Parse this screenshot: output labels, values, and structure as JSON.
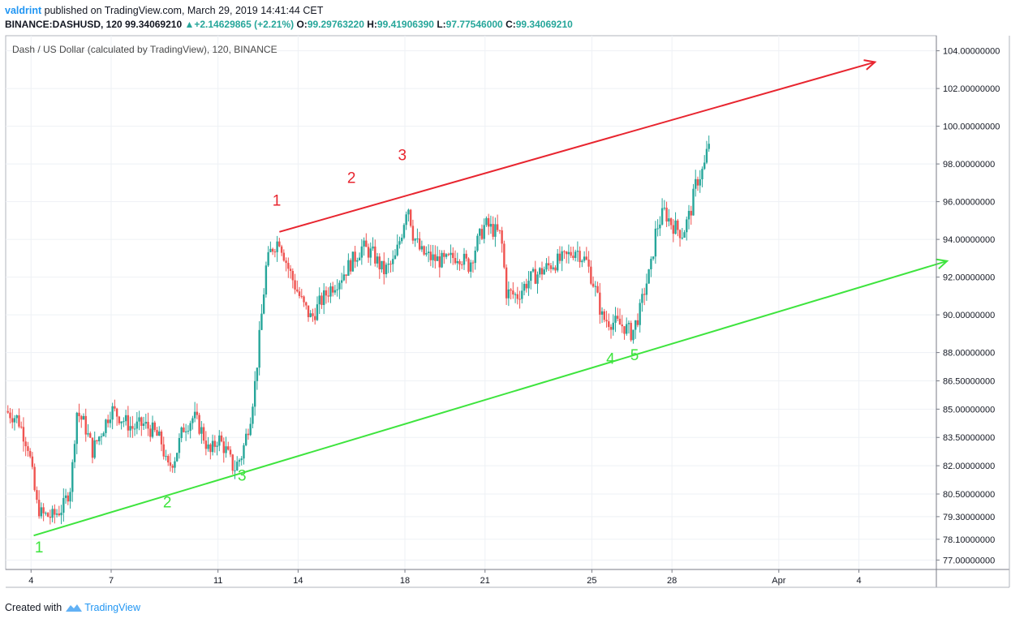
{
  "header": {
    "author": "valdrint",
    "published": " published on TradingView.com, March 29, 2019 14:41:44 CET",
    "symbol": "BINANCE:DASHUSD, 120",
    "last_price": "99.34069210",
    "change_arrow": "▲",
    "change": "+2.14629865 (+2.21%)",
    "open_label": "O:",
    "open": "99.29763220",
    "high_label": "H:",
    "high": "99.41906390",
    "low_label": "L:",
    "low": "97.77546000",
    "close_label": "C:",
    "close": "99.34069210"
  },
  "footer": {
    "created_with": "Created with",
    "brand": "TradingView"
  },
  "chart_data": {
    "type": "candlestick",
    "title": "Dash / US Dollar (calculated by TradingView), 120, BINANCE",
    "ylim": [
      76.5,
      104.8
    ],
    "y_ticks": [
      {
        "value": 104,
        "label": "104.00000000"
      },
      {
        "value": 102,
        "label": "102.00000000"
      },
      {
        "value": 100,
        "label": "100.00000000"
      },
      {
        "value": 98,
        "label": "98.00000000"
      },
      {
        "value": 96,
        "label": "96.00000000"
      },
      {
        "value": 94,
        "label": "94.00000000"
      },
      {
        "value": 92,
        "label": "92.00000000"
      },
      {
        "value": 90,
        "label": "90.00000000"
      },
      {
        "value": 88,
        "label": "88.00000000"
      },
      {
        "value": 86.5,
        "label": "86.50000000"
      },
      {
        "value": 85,
        "label": "85.00000000"
      },
      {
        "value": 83.5,
        "label": "83.50000000"
      },
      {
        "value": 82,
        "label": "82.00000000"
      },
      {
        "value": 80.5,
        "label": "80.50000000"
      },
      {
        "value": 79.3,
        "label": "79.30000000"
      },
      {
        "value": 78.1,
        "label": "78.10000000"
      },
      {
        "value": 77,
        "label": "77.00000000"
      }
    ],
    "x_ticks": [
      {
        "day": 4,
        "label": "4"
      },
      {
        "day": 7,
        "label": "7"
      },
      {
        "day": 11,
        "label": "11"
      },
      {
        "day": 14,
        "label": "14"
      },
      {
        "day": 18,
        "label": "18"
      },
      {
        "day": 21,
        "label": "21"
      },
      {
        "day": 25,
        "label": "25"
      },
      {
        "day": 28,
        "label": "28"
      },
      {
        "day": 32,
        "label": "Apr"
      },
      {
        "day": 35,
        "label": "4"
      }
    ],
    "x_range_days": [
      3.05,
      37.9
    ],
    "price_path": [
      [
        3.05,
        84.9
      ],
      [
        3.5,
        84.5
      ],
      [
        3.9,
        83.0
      ],
      [
        4.2,
        80.0
      ],
      [
        4.4,
        79.4
      ],
      [
        4.8,
        79.3
      ],
      [
        5.2,
        79.8
      ],
      [
        5.5,
        81.0
      ],
      [
        5.7,
        84.9
      ],
      [
        6.0,
        84.2
      ],
      [
        6.3,
        82.8
      ],
      [
        6.7,
        84.0
      ],
      [
        7.0,
        85.0
      ],
      [
        7.4,
        84.5
      ],
      [
        7.8,
        84.0
      ],
      [
        8.2,
        84.2
      ],
      [
        8.6,
        83.8
      ],
      [
        8.9,
        83.2
      ],
      [
        9.1,
        81.8
      ],
      [
        9.4,
        82.5
      ],
      [
        9.7,
        84.0
      ],
      [
        10.1,
        84.6
      ],
      [
        10.4,
        83.8
      ],
      [
        10.7,
        82.6
      ],
      [
        11.0,
        83.5
      ],
      [
        11.3,
        82.8
      ],
      [
        11.6,
        81.8
      ],
      [
        11.9,
        82.6
      ],
      [
        12.2,
        84.5
      ],
      [
        12.4,
        86.5
      ],
      [
        12.6,
        89.5
      ],
      [
        12.8,
        92.5
      ],
      [
        13.0,
        93.5
      ],
      [
        13.3,
        94.0
      ],
      [
        13.6,
        92.6
      ],
      [
        13.9,
        91.5
      ],
      [
        14.2,
        90.5
      ],
      [
        14.5,
        89.8
      ],
      [
        14.8,
        90.6
      ],
      [
        15.2,
        91.4
      ],
      [
        15.6,
        92.0
      ],
      [
        16.0,
        92.8
      ],
      [
        16.4,
        93.6
      ],
      [
        16.8,
        93.2
      ],
      [
        17.2,
        92.3
      ],
      [
        17.6,
        92.8
      ],
      [
        17.9,
        94.5
      ],
      [
        18.1,
        96.0
      ],
      [
        18.3,
        94.3
      ],
      [
        18.6,
        93.3
      ],
      [
        19.0,
        93.0
      ],
      [
        19.5,
        92.8
      ],
      [
        20.0,
        93.2
      ],
      [
        20.4,
        92.6
      ],
      [
        20.7,
        93.8
      ],
      [
        21.0,
        94.8
      ],
      [
        21.4,
        94.4
      ],
      [
        21.6,
        94.2
      ],
      [
        21.8,
        91.2
      ],
      [
        22.2,
        91.0
      ],
      [
        22.6,
        91.8
      ],
      [
        23.0,
        92.2
      ],
      [
        23.5,
        92.7
      ],
      [
        24.0,
        93.0
      ],
      [
        24.4,
        93.5
      ],
      [
        24.8,
        92.8
      ],
      [
        25.1,
        91.5
      ],
      [
        25.4,
        89.8
      ],
      [
        25.8,
        89.6
      ],
      [
        26.2,
        89.4
      ],
      [
        26.5,
        89.0
      ],
      [
        26.8,
        90.2
      ],
      [
        27.0,
        91.5
      ],
      [
        27.2,
        92.4
      ],
      [
        27.4,
        94.5
      ],
      [
        27.7,
        95.5
      ],
      [
        28.0,
        94.8
      ],
      [
        28.4,
        94.3
      ],
      [
        28.7,
        95.5
      ],
      [
        28.9,
        97.0
      ],
      [
        29.2,
        97.8
      ],
      [
        29.4,
        99.3
      ]
    ],
    "trend_lines": [
      {
        "name": "resistance",
        "color": "#e8252f",
        "from": [
          13.3,
          94.4
        ],
        "to": [
          35.6,
          103.4
        ],
        "arrow": true
      },
      {
        "name": "support",
        "color": "#3ee43e",
        "from": [
          4.1,
          78.3
        ],
        "to": [
          38.3,
          92.85
        ],
        "arrow": true
      }
    ],
    "annotations": [
      {
        "text": "1",
        "color": "#e8252f",
        "x": 13.2,
        "y": 95.8
      },
      {
        "text": "2",
        "color": "#e8252f",
        "x": 16.0,
        "y": 97.0
      },
      {
        "text": "3",
        "color": "#e8252f",
        "x": 17.9,
        "y": 98.2
      },
      {
        "text": "1",
        "color": "#3ee43e",
        "x": 4.3,
        "y": 77.4
      },
      {
        "text": "2",
        "color": "#3ee43e",
        "x": 9.1,
        "y": 79.8
      },
      {
        "text": "3",
        "color": "#3ee43e",
        "x": 11.9,
        "y": 81.2
      },
      {
        "text": "4",
        "color": "#3ee43e",
        "x": 25.7,
        "y": 87.4
      },
      {
        "text": "5",
        "color": "#3ee43e",
        "x": 26.6,
        "y": 87.6
      }
    ],
    "up_color": "#26a69a",
    "down_color": "#ef5350",
    "grid": true
  }
}
